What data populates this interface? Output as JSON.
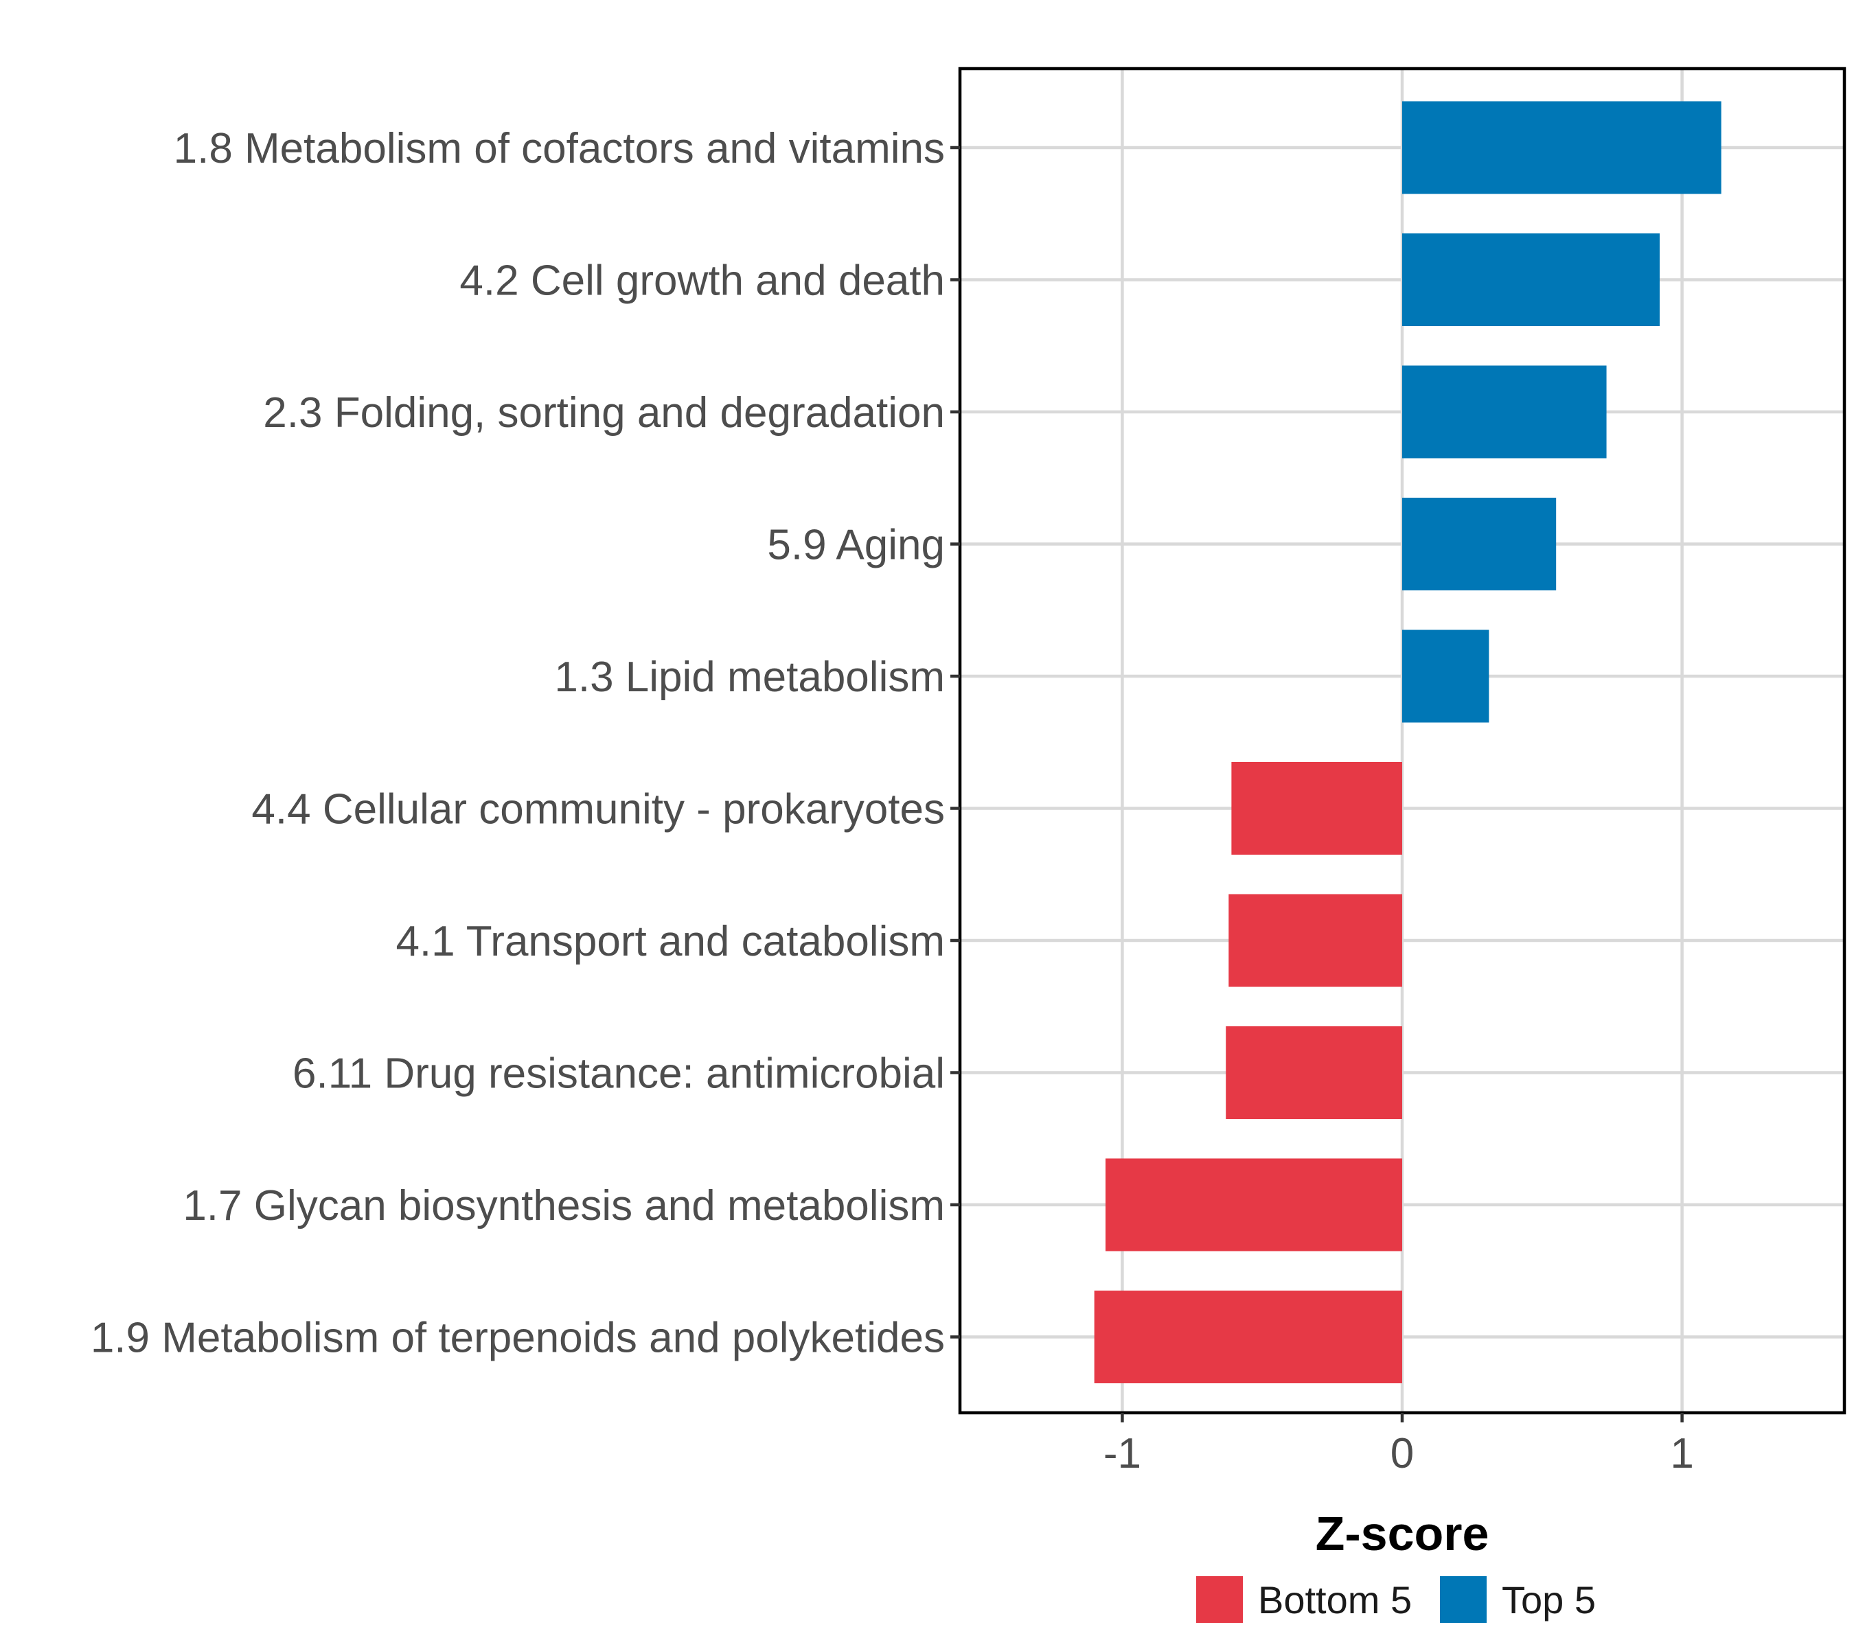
{
  "chart_data": {
    "type": "bar",
    "orientation": "horizontal",
    "title": "",
    "xlabel": "Z-score",
    "ylabel": "",
    "xlim": [
      -1.58,
      1.58
    ],
    "xticks": [
      -1,
      0,
      1
    ],
    "xtick_labels": [
      "-1",
      "0",
      "1"
    ],
    "grid": true,
    "legend_position": "bottom",
    "categories": [
      "1.8 Metabolism of cofactors and vitamins",
      "4.2 Cell growth and death",
      "2.3 Folding, sorting and degradation",
      "5.9 Aging",
      "1.3 Lipid metabolism",
      "4.4 Cellular community - prokaryotes",
      "4.1 Transport and catabolism",
      "6.11 Drug resistance: antimicrobial",
      "1.7 Glycan biosynthesis and metabolism",
      "1.9 Metabolism of terpenoids and polyketides"
    ],
    "values": [
      1.14,
      0.92,
      0.73,
      0.55,
      0.31,
      -0.61,
      -0.62,
      -0.63,
      -1.06,
      -1.1
    ],
    "groups": [
      "Top 5",
      "Top 5",
      "Top 5",
      "Top 5",
      "Top 5",
      "Bottom 5",
      "Bottom 5",
      "Bottom 5",
      "Bottom 5",
      "Bottom 5"
    ],
    "legend": [
      {
        "name": "Bottom 5",
        "color": "#e63946"
      },
      {
        "name": "Top 5",
        "color": "#0077b6"
      }
    ]
  }
}
